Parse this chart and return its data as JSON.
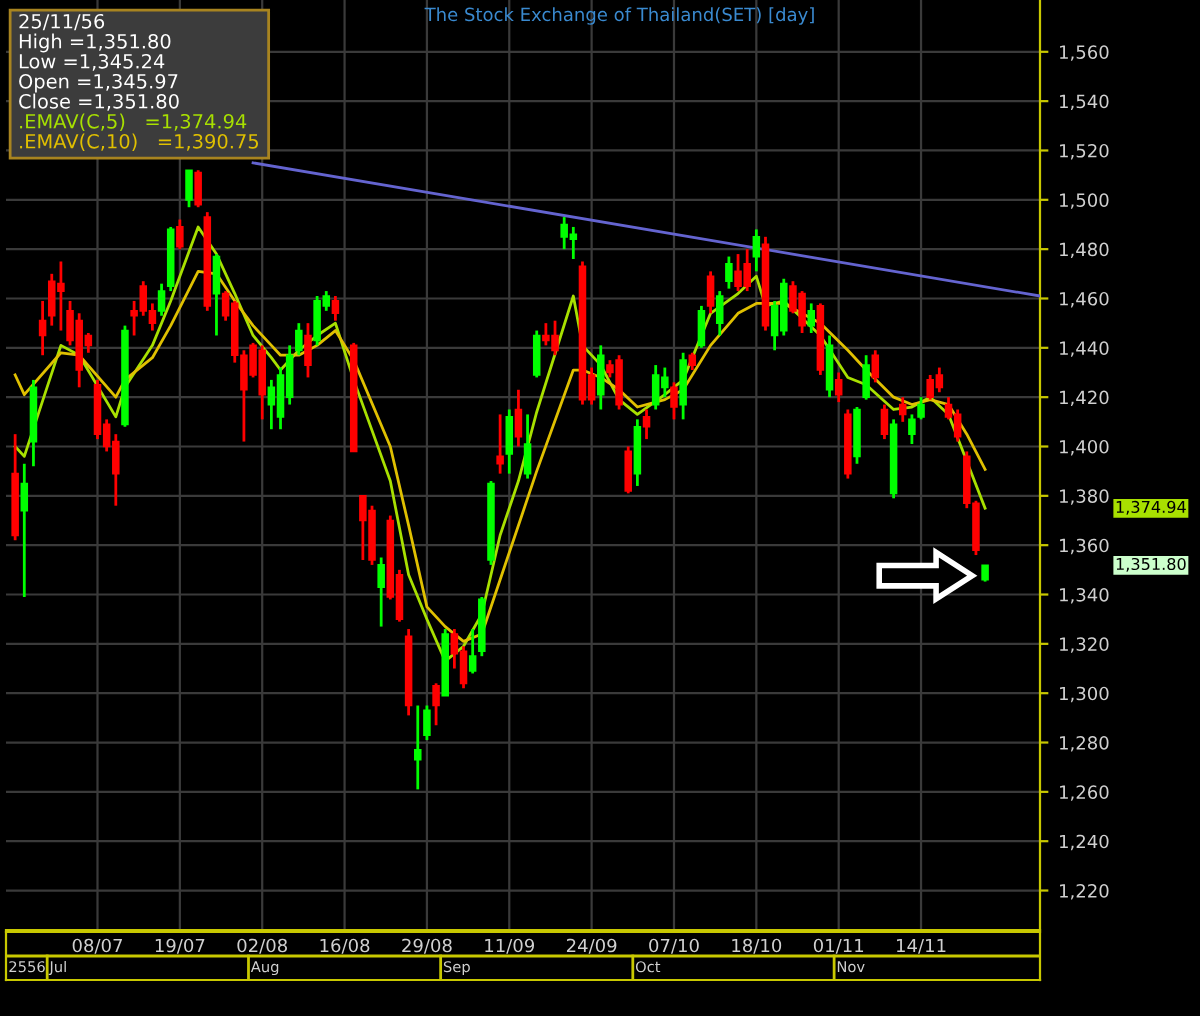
{
  "chart_data": {
    "type": "candlestick",
    "title": "The Stock Exchange of Thailand(SET) [day]",
    "categories": [
      null,
      null,
      null,
      null,
      null,
      null,
      null,
      null,
      null,
      "08/07",
      null,
      null,
      null,
      null,
      null,
      null,
      null,
      null,
      "19/07",
      null,
      null,
      null,
      null,
      null,
      null,
      null,
      null,
      "02/08",
      null,
      null,
      null,
      null,
      null,
      null,
      null,
      null,
      "16/08",
      null,
      null,
      null,
      null,
      null,
      null,
      null,
      null,
      "29/08",
      null,
      null,
      null,
      null,
      null,
      null,
      null,
      null,
      "11/09",
      null,
      null,
      null,
      null,
      null,
      null,
      null,
      null,
      "24/09",
      null,
      null,
      null,
      null,
      null,
      null,
      null,
      null,
      "07/10",
      null,
      null,
      null,
      null,
      null,
      null,
      null,
      null,
      "18/10",
      null,
      null,
      null,
      null,
      null,
      null,
      null,
      null,
      "01/11",
      null,
      null,
      null,
      null,
      null,
      null,
      null,
      null,
      "14/11",
      null,
      null,
      null,
      null,
      null,
      null,
      null,
      null,
      null,
      null,
      null,
      null,
      null
    ],
    "ohlc": [
      [
        1389,
        1405,
        1362,
        1364
      ],
      [
        1374,
        1393,
        1339,
        1385
      ],
      [
        1402,
        1427,
        1392,
        1424
      ],
      [
        1451,
        1459,
        1437,
        1445
      ],
      [
        1467,
        1470,
        1449,
        1453
      ],
      [
        1466,
        1475,
        1447,
        1463
      ],
      [
        1455,
        1459,
        1441,
        1443
      ],
      [
        1451,
        1454,
        1424,
        1431
      ],
      [
        1445,
        1446,
        1438,
        1441
      ],
      [
        1425,
        1427,
        1403,
        1405
      ],
      [
        1409,
        1411,
        1398,
        1400
      ],
      [
        1402,
        1405,
        1376,
        1389
      ],
      [
        1409,
        1449,
        1408,
        1447
      ],
      [
        1455,
        1459,
        1445,
        1453
      ],
      [
        1465,
        1467,
        1453,
        1455
      ],
      [
        1455,
        1458,
        1447,
        1450
      ],
      [
        1455,
        1466,
        1453,
        1463
      ],
      [
        1465,
        1489,
        1463,
        1488
      ],
      [
        1489,
        1492,
        1480,
        1481
      ],
      [
        1500,
        1512,
        1497,
        1512
      ],
      [
        1511,
        1512,
        1497,
        1498
      ],
      [
        1493,
        1495,
        1455,
        1457
      ],
      [
        1462,
        1478,
        1445,
        1477
      ],
      [
        1462,
        1463,
        1451,
        1453
      ],
      [
        1458,
        1459,
        1434,
        1437
      ],
      [
        1437,
        1439,
        1402,
        1423
      ],
      [
        1441,
        1442,
        1428,
        1429
      ],
      [
        1439,
        1441,
        1411,
        1421
      ],
      [
        1417,
        1427,
        1407,
        1424
      ],
      [
        1412,
        1432,
        1407,
        1429
      ],
      [
        1420,
        1441,
        1417,
        1437
      ],
      [
        1439,
        1450,
        1437,
        1447
      ],
      [
        1445,
        1450,
        1428,
        1433
      ],
      [
        1443,
        1461,
        1441,
        1459
      ],
      [
        1457,
        1463,
        1455,
        1461
      ],
      [
        1459,
        1461,
        1451,
        1454
      ],
      null,
      [
        1441,
        1442,
        1398,
        1398
      ],
      [
        1380,
        1380,
        1354,
        1370
      ],
      [
        1374,
        1376,
        1352,
        1354
      ],
      [
        1343,
        1355,
        1327,
        1352
      ],
      [
        1370,
        1372,
        1338,
        1339
      ],
      [
        1348,
        1350,
        1329,
        1330
      ],
      [
        1323,
        1326,
        1291,
        1295
      ],
      [
        1273,
        1295,
        1261,
        1277
      ],
      [
        1283,
        1295,
        1281,
        1293
      ],
      [
        1303,
        1304,
        1287,
        1295
      ],
      [
        1299,
        1326,
        1299,
        1324
      ],
      [
        1324,
        1326,
        1310,
        1316
      ],
      [
        1317,
        1319,
        1302,
        1304
      ],
      [
        1309,
        1326,
        1308,
        1315
      ],
      [
        1317,
        1339,
        1315,
        1338
      ],
      [
        1354,
        1386,
        1352,
        1385
      ],
      [
        1396,
        1413,
        1389,
        1393
      ],
      [
        1397,
        1415,
        1389,
        1412
      ],
      [
        1415,
        1423,
        1400,
        1404
      ],
      [
        1389,
        1413,
        1387,
        1401
      ],
      [
        1429,
        1447,
        1428,
        1445
      ],
      [
        1445,
        1450,
        1441,
        1443
      ],
      [
        1445,
        1451,
        1437,
        1439
      ],
      [
        1485,
        1493,
        1480,
        1490
      ],
      [
        1484,
        1489,
        1476,
        1486
      ],
      [
        1473,
        1475,
        1417,
        1419
      ],
      [
        1429,
        1432,
        1417,
        1419
      ],
      [
        1421,
        1441,
        1415,
        1437
      ],
      [
        1433,
        1435,
        1428,
        1430
      ],
      [
        1435,
        1437,
        1415,
        1417
      ],
      [
        1398,
        1400,
        1381,
        1382
      ],
      [
        1389,
        1411,
        1384,
        1408
      ],
      [
        1412,
        1415,
        1403,
        1408
      ],
      [
        1417,
        1433,
        1415,
        1429
      ],
      [
        1424,
        1432,
        1420,
        1428
      ],
      [
        1424,
        1426,
        1411,
        1416
      ],
      [
        1417,
        1438,
        1411,
        1435
      ],
      [
        1437,
        1438,
        1431,
        1433
      ],
      [
        1441,
        1457,
        1440,
        1455
      ],
      [
        1469,
        1471,
        1454,
        1457
      ],
      [
        1450,
        1463,
        1445,
        1461
      ],
      [
        1467,
        1477,
        1464,
        1474
      ],
      [
        1471,
        1478,
        1463,
        1465
      ],
      [
        1474,
        1480,
        1463,
        1465
      ],
      [
        1477,
        1488,
        1471,
        1485
      ],
      [
        1482,
        1485,
        1447,
        1449
      ],
      [
        1445,
        1459,
        1439,
        1457
      ],
      [
        1447,
        1468,
        1445,
        1466
      ],
      [
        1465,
        1467,
        1454,
        1455
      ],
      [
        1462,
        1463,
        1446,
        1449
      ],
      [
        1449,
        1458,
        1446,
        1455
      ],
      [
        1457,
        1458,
        1429,
        1431
      ],
      [
        1423,
        1445,
        1420,
        1441
      ],
      [
        1427,
        1430,
        1418,
        1421
      ],
      [
        1413,
        1415,
        1387,
        1389
      ],
      [
        1396,
        1416,
        1393,
        1415
      ],
      [
        1420,
        1437,
        1419,
        1433
      ],
      [
        1437,
        1439,
        1426,
        1428
      ],
      [
        1415,
        1417,
        1403,
        1405
      ],
      [
        1381,
        1411,
        1379,
        1409
      ],
      [
        1417,
        1420,
        1410,
        1413
      ],
      [
        1405,
        1413,
        1401,
        1411
      ],
      [
        1412,
        1420,
        1411,
        1417
      ],
      [
        1427,
        1429,
        1419,
        1420
      ],
      [
        1429,
        1432,
        1422,
        1424
      ],
      [
        1417,
        1420,
        1411,
        1412
      ],
      [
        1413,
        1415,
        1402,
        1404
      ],
      [
        1396,
        1398,
        1375,
        1377
      ],
      [
        1377,
        1378,
        1356,
        1358
      ],
      [
        1345.97,
        1351.8,
        1345.24,
        1351.8
      ],
      null,
      null,
      null,
      null,
      null,
      null
    ],
    "colors": [
      "#ff0000",
      "#00ff00",
      "#00ff00",
      "#ff0000",
      "#ff0000",
      "#ff0000",
      "#ff0000",
      "#ff0000",
      "#ff0000",
      "#ff0000",
      "#ff0000",
      "#ff0000",
      "#00ff00",
      "#ff0000",
      "#ff0000",
      "#ff0000",
      "#00ff00",
      "#00ff00",
      "#ff0000",
      "#00ff00",
      "#ff0000",
      "#ff0000",
      "#00ff00",
      "#ff0000",
      "#ff0000",
      "#ff0000",
      "#ff0000",
      "#ff0000",
      "#00ff00",
      "#00ff00",
      "#00ff00",
      "#00ff00",
      "#ff0000",
      "#00ff00",
      "#00ff00",
      "#ff0000",
      null,
      "#ff0000",
      "#ff0000",
      "#ff0000",
      "#00ff00",
      "#ff0000",
      "#ff0000",
      "#ff0000",
      "#00ff00",
      "#00ff00",
      "#ff0000",
      "#00ff00",
      "#ff0000",
      "#ff0000",
      "#00ff00",
      "#00ff00",
      "#00ff00",
      "#ff0000",
      "#00ff00",
      "#ff0000",
      "#00ff00",
      "#00ff00",
      "#ff0000",
      "#ff0000",
      "#00ff00",
      "#00ff00",
      "#ff0000",
      "#ff0000",
      "#00ff00",
      "#ff0000",
      "#ff0000",
      "#ff0000",
      "#00ff00",
      "#ff0000",
      "#00ff00",
      "#00ff00",
      "#ff0000",
      "#00ff00",
      "#ff0000",
      "#00ff00",
      "#ff0000",
      "#00ff00",
      "#00ff00",
      "#ff0000",
      "#ff0000",
      "#00ff00",
      "#ff0000",
      "#00ff00",
      "#00ff00",
      "#ff0000",
      "#ff0000",
      "#00ff00",
      "#ff0000",
      "#00ff00",
      "#ff0000",
      "#ff0000",
      "#00ff00",
      "#00ff00",
      "#ff0000",
      "#ff0000",
      "#00ff00",
      "#ff0000",
      "#00ff00",
      "#00ff00",
      "#ff0000",
      "#ff0000",
      "#ff0000",
      "#ff0000",
      "#ff0000",
      "#ff0000",
      "#00ff00",
      null,
      null,
      null,
      null,
      null,
      null
    ],
    "series": [
      {
        "type": "line",
        "name": ".EMAV(C,5)",
        "color": "#a8e000",
        "values": [
          1400,
          1396,
          null,
          null,
          null,
          1441,
          null,
          1437,
          null,
          null,
          null,
          1412,
          1424,
          null,
          null,
          1441,
          null,
          1459,
          null,
          null,
          1489,
          null,
          1478,
          null,
          1462,
          null,
          1445,
          null,
          1436,
          1431,
          null,
          1439,
          null,
          1445,
          null,
          1450,
          null,
          1427,
          null,
          null,
          null,
          1386,
          null,
          1348,
          null,
          1330,
          null,
          1313,
          null,
          1319,
          null,
          1332,
          null,
          1364,
          null,
          1386,
          null,
          1414,
          null,
          null,
          null,
          1461,
          1441,
          null,
          1433,
          null,
          1419,
          null,
          1413,
          null,
          null,
          1421,
          null,
          1427,
          null,
          null,
          1454,
          null,
          null,
          1462,
          null,
          1469,
          1457,
          null,
          1459,
          null,
          null,
          null,
          1445,
          null,
          null,
          1428,
          null,
          1425,
          null,
          null,
          1415,
          null,
          1416,
          null,
          1420,
          null,
          1413,
          null,
          1394,
          null,
          1374.94,
          null,
          null,
          null,
          null,
          null,
          null
        ]
      },
      {
        "type": "line",
        "name": ".EMAV(C,10)",
        "color": "#e0c000",
        "values": [
          1429,
          1421,
          null,
          null,
          null,
          1438,
          null,
          1437,
          null,
          null,
          null,
          1420,
          1427,
          null,
          null,
          1436,
          null,
          1449,
          null,
          null,
          1471,
          null,
          1470,
          null,
          1459,
          null,
          1449,
          null,
          1441,
          1437,
          null,
          1437,
          null,
          1441,
          null,
          1447,
          null,
          1435,
          null,
          null,
          null,
          1400,
          null,
          1368,
          null,
          1335,
          null,
          1327,
          null,
          1321,
          null,
          1324,
          null,
          1346,
          null,
          1368,
          null,
          1390,
          null,
          null,
          null,
          1431,
          1431,
          null,
          1428,
          null,
          1423,
          null,
          1416,
          null,
          null,
          1419,
          null,
          1423,
          null,
          null,
          1441,
          null,
          null,
          1454,
          null,
          1458,
          1458,
          null,
          1458,
          null,
          null,
          null,
          1450,
          null,
          null,
          1439,
          null,
          1431,
          null,
          null,
          1420,
          null,
          1417,
          null,
          1419,
          null,
          1417,
          null,
          1405,
          null,
          1390.75,
          null,
          null,
          null,
          null,
          null,
          null
        ]
      },
      {
        "type": "line",
        "color": "#6464d0",
        "values": [
          null,
          null,
          null,
          null,
          null,
          null,
          null,
          null,
          null,
          null,
          null,
          null,
          null,
          null,
          null,
          null,
          null,
          null,
          null,
          null,
          null,
          null,
          null,
          null,
          null,
          null,
          1515,
          null,
          null,
          null,
          null,
          null,
          null,
          null,
          null,
          null,
          null,
          null,
          null,
          null,
          null,
          null,
          null,
          null,
          null,
          null,
          null,
          null,
          null,
          null,
          null,
          null,
          null,
          null,
          null,
          null,
          null,
          null,
          null,
          null,
          null,
          null,
          null,
          null,
          null,
          null,
          null,
          null,
          null,
          null,
          null,
          null,
          null,
          null,
          null,
          null,
          null,
          null,
          null,
          null,
          null,
          null,
          null,
          null,
          null,
          null,
          null,
          null,
          null,
          null,
          null,
          null,
          null,
          null,
          null,
          null,
          null,
          null,
          null,
          null,
          null,
          null,
          null,
          null,
          null,
          null,
          null,
          null,
          null,
          null,
          null,
          null,
          1461
        ]
      }
    ],
    "ylim": [
      1204,
      1581
    ],
    "yticks": [
      {
        "value": 1220,
        "label": "1,220"
      },
      {
        "value": 1240,
        "label": "1,240"
      },
      {
        "value": 1260,
        "label": "1,260"
      },
      {
        "value": 1280,
        "label": "1,280"
      },
      {
        "value": 1300,
        "label": "1,300"
      },
      {
        "value": 1320,
        "label": "1,320"
      },
      {
        "value": 1340,
        "label": "1,340"
      },
      {
        "value": 1360,
        "label": "1,360"
      },
      {
        "value": 1380,
        "label": "1,380"
      },
      {
        "value": 1400,
        "label": "1,400"
      },
      {
        "value": 1420,
        "label": "1,420"
      },
      {
        "value": 1440,
        "label": "1,440"
      },
      {
        "value": 1460,
        "label": "1,460"
      },
      {
        "value": 1480,
        "label": "1,480"
      },
      {
        "value": 1500,
        "label": "1,500"
      },
      {
        "value": 1520,
        "label": "1,520"
      },
      {
        "value": 1540,
        "label": "1,540"
      },
      {
        "value": 1560,
        "label": "1,560"
      }
    ],
    "grid": true,
    "annotations": [
      "25/11/56",
      "High =1,351.80",
      "Low =1,345.24",
      "Open =1,345.97",
      "Close =1,351.80",
      "=1,374.94",
      "=1,390.75",
      "2556",
      "Jul",
      "Aug",
      "Sep",
      "Oct",
      "Nov",
      "1,374.94",
      "1,351.80"
    ]
  }
}
